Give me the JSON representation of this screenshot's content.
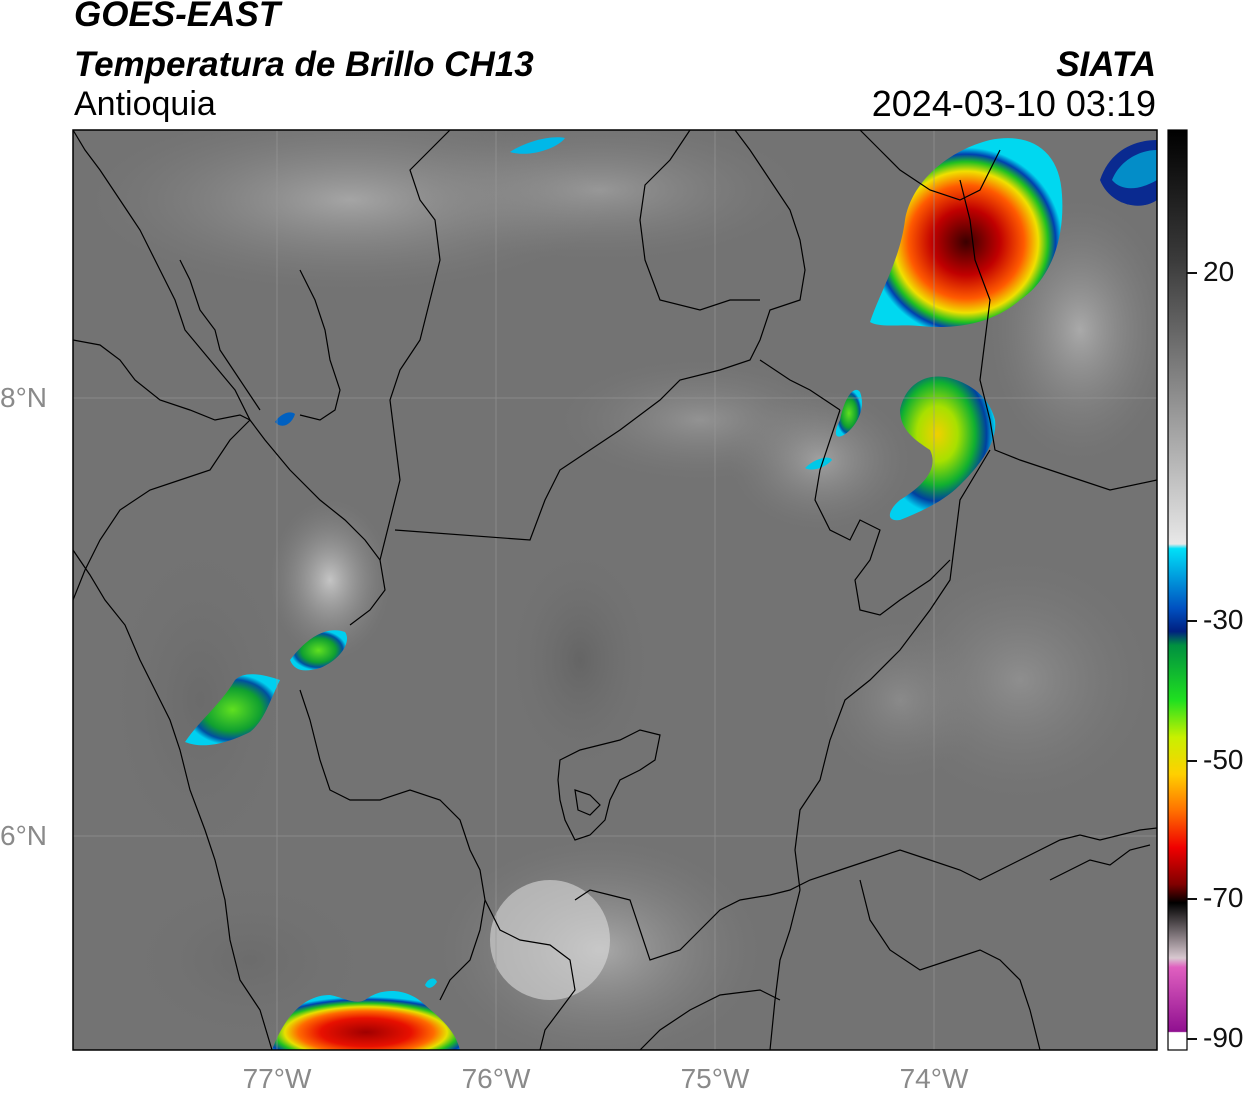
{
  "header": {
    "satellite": "GOES-EAST",
    "product": "Temperatura de Brillo CH13",
    "region": "Antioquia",
    "organization": "SIATA",
    "timestamp": "2024-03-10 03:19"
  },
  "map": {
    "latitude_labels": [
      {
        "text": "8°N",
        "lat": 8
      },
      {
        "text": "6°N",
        "lat": 6
      }
    ],
    "longitude_labels": [
      {
        "text": "77°W",
        "lon": -77
      },
      {
        "text": "76°W",
        "lon": -76
      },
      {
        "text": "75°W",
        "lon": -75
      },
      {
        "text": "74°W",
        "lon": -74
      }
    ],
    "label_color": "#8a8a8a"
  },
  "colorbar": {
    "ticks": [
      {
        "label": "20",
        "value": 20
      },
      {
        "label": "-30",
        "value": -30
      },
      {
        "label": "-50",
        "value": -50
      },
      {
        "label": "-70",
        "value": -70
      },
      {
        "label": "-90",
        "value": -90
      }
    ],
    "colors": {
      "warm_gray": "#5a5a5a",
      "cyan": "#00d8f0",
      "blue": "#0a2a90",
      "green": "#14c814",
      "yellow": "#f0f000",
      "orange": "#ff8c00",
      "red": "#e00000",
      "dark_red": "#5a0000",
      "black": "#000000",
      "pink": "#e060c0",
      "purple": "#901090"
    }
  }
}
